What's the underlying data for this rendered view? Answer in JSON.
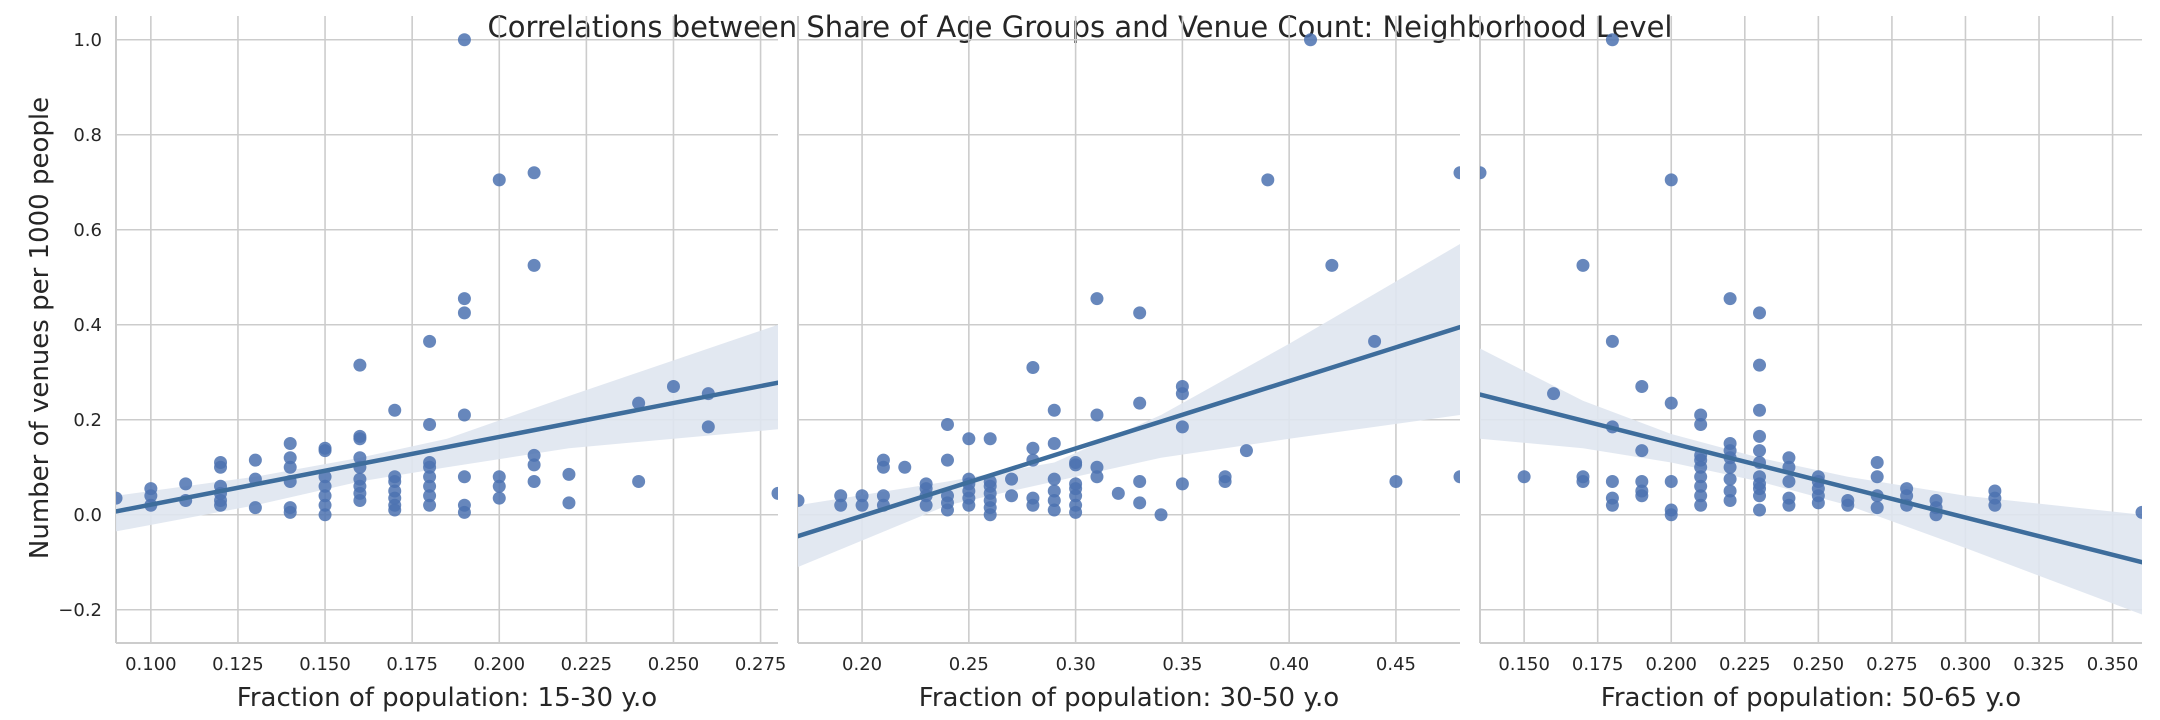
{
  "chart_data": {
    "type": "scatter",
    "title": "Correlations between Share of Age Groups and Venue Count: Neighborhood Level",
    "ylabel": "Number of venues per 1000 people",
    "ylim": [
      -0.27,
      1.05
    ],
    "yticks": [
      -0.2,
      0.0,
      0.2,
      0.4,
      0.6,
      0.8,
      1.0
    ],
    "ytick_labels": [
      "−0.2",
      "0.0",
      "0.2",
      "0.4",
      "0.6",
      "0.8",
      "1.0"
    ],
    "grid": true,
    "colors": {
      "points": "#4c72b0",
      "line": "#3e6d9c",
      "band": "#dfe6ef",
      "grid": "#cccccc",
      "spine": "#cccccc"
    },
    "panels": [
      {
        "xlabel": "Fraction of population: 15-30 y.o",
        "xlim": [
          0.09,
          0.28
        ],
        "xticks": [
          0.1,
          0.125,
          0.15,
          0.175,
          0.2,
          0.225,
          0.25,
          0.275
        ],
        "xtick_labels": [
          "0.100",
          "0.125",
          "0.150",
          "0.175",
          "0.200",
          "0.225",
          "0.250",
          "0.275"
        ],
        "fit_line": [
          [
            0.09,
            0.007
          ],
          [
            0.28,
            0.278
          ]
        ],
        "band_upper": [
          [
            0.09,
            0.04
          ],
          [
            0.13,
            0.08
          ],
          [
            0.16,
            0.12
          ],
          [
            0.185,
            0.16
          ],
          [
            0.22,
            0.25
          ],
          [
            0.28,
            0.4
          ]
        ],
        "band_lower": [
          [
            0.09,
            -0.035
          ],
          [
            0.13,
            0.02
          ],
          [
            0.16,
            0.07
          ],
          [
            0.185,
            0.1
          ],
          [
            0.22,
            0.14
          ],
          [
            0.28,
            0.18
          ]
        ],
        "points": [
          [
            0.09,
            0.035
          ],
          [
            0.1,
            0.02
          ],
          [
            0.1,
            0.04
          ],
          [
            0.1,
            0.055
          ],
          [
            0.11,
            0.03
          ],
          [
            0.11,
            0.065
          ],
          [
            0.12,
            0.02
          ],
          [
            0.12,
            0.03
          ],
          [
            0.12,
            0.045
          ],
          [
            0.12,
            0.06
          ],
          [
            0.12,
            0.1
          ],
          [
            0.12,
            0.11
          ],
          [
            0.13,
            0.015
          ],
          [
            0.13,
            0.075
          ],
          [
            0.13,
            0.115
          ],
          [
            0.14,
            0.005
          ],
          [
            0.14,
            0.015
          ],
          [
            0.14,
            0.07
          ],
          [
            0.14,
            0.1
          ],
          [
            0.14,
            0.12
          ],
          [
            0.14,
            0.15
          ],
          [
            0.15,
            0.0
          ],
          [
            0.15,
            0.02
          ],
          [
            0.15,
            0.04
          ],
          [
            0.15,
            0.06
          ],
          [
            0.15,
            0.08
          ],
          [
            0.15,
            0.135
          ],
          [
            0.15,
            0.14
          ],
          [
            0.16,
            0.03
          ],
          [
            0.16,
            0.045
          ],
          [
            0.16,
            0.06
          ],
          [
            0.16,
            0.075
          ],
          [
            0.16,
            0.1
          ],
          [
            0.16,
            0.12
          ],
          [
            0.16,
            0.16
          ],
          [
            0.16,
            0.165
          ],
          [
            0.16,
            0.315
          ],
          [
            0.17,
            0.01
          ],
          [
            0.17,
            0.02
          ],
          [
            0.17,
            0.035
          ],
          [
            0.17,
            0.05
          ],
          [
            0.17,
            0.07
          ],
          [
            0.17,
            0.08
          ],
          [
            0.17,
            0.22
          ],
          [
            0.18,
            0.02
          ],
          [
            0.18,
            0.04
          ],
          [
            0.18,
            0.06
          ],
          [
            0.18,
            0.08
          ],
          [
            0.18,
            0.1
          ],
          [
            0.18,
            0.11
          ],
          [
            0.18,
            0.19
          ],
          [
            0.18,
            0.365
          ],
          [
            0.19,
            0.005
          ],
          [
            0.19,
            0.02
          ],
          [
            0.19,
            0.08
          ],
          [
            0.19,
            0.21
          ],
          [
            0.19,
            0.425
          ],
          [
            0.19,
            0.455
          ],
          [
            0.19,
            1.0
          ],
          [
            0.2,
            0.035
          ],
          [
            0.2,
            0.06
          ],
          [
            0.2,
            0.08
          ],
          [
            0.2,
            0.705
          ],
          [
            0.21,
            0.07
          ],
          [
            0.21,
            0.105
          ],
          [
            0.21,
            0.125
          ],
          [
            0.21,
            0.525
          ],
          [
            0.21,
            0.72
          ],
          [
            0.22,
            0.025
          ],
          [
            0.22,
            0.085
          ],
          [
            0.24,
            0.07
          ],
          [
            0.24,
            0.235
          ],
          [
            0.25,
            0.27
          ],
          [
            0.26,
            0.185
          ],
          [
            0.26,
            0.255
          ],
          [
            0.28,
            0.045
          ]
        ]
      },
      {
        "xlabel": "Fraction of population: 30-50 y.o",
        "xlim": [
          0.17,
          0.48
        ],
        "xticks": [
          0.2,
          0.25,
          0.3,
          0.35,
          0.4,
          0.45
        ],
        "xtick_labels": [
          "0.20",
          "0.25",
          "0.30",
          "0.35",
          "0.40",
          "0.45"
        ],
        "fit_line": [
          [
            0.17,
            -0.045
          ],
          [
            0.48,
            0.395
          ]
        ],
        "band_upper": [
          [
            0.17,
            0.02
          ],
          [
            0.24,
            0.07
          ],
          [
            0.29,
            0.11
          ],
          [
            0.34,
            0.21
          ],
          [
            0.4,
            0.36
          ],
          [
            0.48,
            0.57
          ]
        ],
        "band_lower": [
          [
            0.17,
            -0.11
          ],
          [
            0.24,
            0.02
          ],
          [
            0.29,
            0.07
          ],
          [
            0.34,
            0.12
          ],
          [
            0.4,
            0.16
          ],
          [
            0.48,
            0.21
          ]
        ],
        "points": [
          [
            0.17,
            0.03
          ],
          [
            0.19,
            0.02
          ],
          [
            0.19,
            0.04
          ],
          [
            0.2,
            0.02
          ],
          [
            0.2,
            0.04
          ],
          [
            0.21,
            0.02
          ],
          [
            0.21,
            0.04
          ],
          [
            0.21,
            0.1
          ],
          [
            0.21,
            0.115
          ],
          [
            0.22,
            0.1
          ],
          [
            0.23,
            0.02
          ],
          [
            0.23,
            0.04
          ],
          [
            0.23,
            0.055
          ],
          [
            0.23,
            0.065
          ],
          [
            0.24,
            0.01
          ],
          [
            0.24,
            0.025
          ],
          [
            0.24,
            0.04
          ],
          [
            0.24,
            0.115
          ],
          [
            0.24,
            0.19
          ],
          [
            0.25,
            0.02
          ],
          [
            0.25,
            0.035
          ],
          [
            0.25,
            0.05
          ],
          [
            0.25,
            0.065
          ],
          [
            0.25,
            0.075
          ],
          [
            0.25,
            0.16
          ],
          [
            0.26,
            0.0
          ],
          [
            0.26,
            0.015
          ],
          [
            0.26,
            0.03
          ],
          [
            0.26,
            0.045
          ],
          [
            0.26,
            0.06
          ],
          [
            0.26,
            0.07
          ],
          [
            0.26,
            0.16
          ],
          [
            0.27,
            0.04
          ],
          [
            0.27,
            0.075
          ],
          [
            0.28,
            0.02
          ],
          [
            0.28,
            0.035
          ],
          [
            0.28,
            0.115
          ],
          [
            0.28,
            0.14
          ],
          [
            0.28,
            0.31
          ],
          [
            0.29,
            0.01
          ],
          [
            0.29,
            0.03
          ],
          [
            0.29,
            0.05
          ],
          [
            0.29,
            0.075
          ],
          [
            0.29,
            0.15
          ],
          [
            0.29,
            0.22
          ],
          [
            0.3,
            0.005
          ],
          [
            0.3,
            0.02
          ],
          [
            0.3,
            0.04
          ],
          [
            0.3,
            0.055
          ],
          [
            0.3,
            0.065
          ],
          [
            0.3,
            0.105
          ],
          [
            0.3,
            0.11
          ],
          [
            0.31,
            0.08
          ],
          [
            0.31,
            0.1
          ],
          [
            0.31,
            0.21
          ],
          [
            0.31,
            0.455
          ],
          [
            0.32,
            0.045
          ],
          [
            0.33,
            0.025
          ],
          [
            0.33,
            0.07
          ],
          [
            0.33,
            0.235
          ],
          [
            0.33,
            0.425
          ],
          [
            0.34,
            0.0
          ],
          [
            0.35,
            0.065
          ],
          [
            0.35,
            0.185
          ],
          [
            0.35,
            0.255
          ],
          [
            0.35,
            0.27
          ],
          [
            0.37,
            0.07
          ],
          [
            0.37,
            0.08
          ],
          [
            0.38,
            0.135
          ],
          [
            0.39,
            0.705
          ],
          [
            0.41,
            1.0
          ],
          [
            0.42,
            0.525
          ],
          [
            0.44,
            0.365
          ],
          [
            0.45,
            0.07
          ],
          [
            0.48,
            0.08
          ],
          [
            0.48,
            0.72
          ]
        ]
      },
      {
        "xlabel": "Fraction of population: 50-65 y.o",
        "xlim": [
          0.135,
          0.36
        ],
        "xticks": [
          0.15,
          0.175,
          0.2,
          0.225,
          0.25,
          0.275,
          0.3,
          0.325,
          0.35
        ],
        "xtick_labels": [
          "0.150",
          "0.175",
          "0.200",
          "0.225",
          "0.250",
          "0.275",
          "0.300",
          "0.325",
          "0.350"
        ],
        "fit_line": [
          [
            0.135,
            0.253
          ],
          [
            0.36,
            -0.1
          ]
        ],
        "band_upper": [
          [
            0.135,
            0.35
          ],
          [
            0.17,
            0.24
          ],
          [
            0.2,
            0.17
          ],
          [
            0.23,
            0.12
          ],
          [
            0.26,
            0.08
          ],
          [
            0.3,
            0.04
          ],
          [
            0.36,
            0.0
          ]
        ],
        "band_lower": [
          [
            0.135,
            0.16
          ],
          [
            0.17,
            0.14
          ],
          [
            0.2,
            0.11
          ],
          [
            0.23,
            0.07
          ],
          [
            0.26,
            0.02
          ],
          [
            0.3,
            -0.07
          ],
          [
            0.36,
            -0.21
          ]
        ],
        "points": [
          [
            0.135,
            0.72
          ],
          [
            0.15,
            0.08
          ],
          [
            0.16,
            0.255
          ],
          [
            0.17,
            0.07
          ],
          [
            0.17,
            0.08
          ],
          [
            0.17,
            0.525
          ],
          [
            0.18,
            0.02
          ],
          [
            0.18,
            0.035
          ],
          [
            0.18,
            0.07
          ],
          [
            0.18,
            0.185
          ],
          [
            0.18,
            0.365
          ],
          [
            0.18,
            1.0
          ],
          [
            0.19,
            0.04
          ],
          [
            0.19,
            0.05
          ],
          [
            0.19,
            0.07
          ],
          [
            0.19,
            0.135
          ],
          [
            0.19,
            0.27
          ],
          [
            0.2,
            0.0
          ],
          [
            0.2,
            0.01
          ],
          [
            0.2,
            0.07
          ],
          [
            0.2,
            0.235
          ],
          [
            0.2,
            0.705
          ],
          [
            0.21,
            0.02
          ],
          [
            0.21,
            0.04
          ],
          [
            0.21,
            0.06
          ],
          [
            0.21,
            0.08
          ],
          [
            0.21,
            0.1
          ],
          [
            0.21,
            0.115
          ],
          [
            0.21,
            0.125
          ],
          [
            0.21,
            0.19
          ],
          [
            0.21,
            0.21
          ],
          [
            0.22,
            0.03
          ],
          [
            0.22,
            0.05
          ],
          [
            0.22,
            0.075
          ],
          [
            0.22,
            0.1
          ],
          [
            0.22,
            0.12
          ],
          [
            0.22,
            0.135
          ],
          [
            0.22,
            0.15
          ],
          [
            0.22,
            0.455
          ],
          [
            0.23,
            0.01
          ],
          [
            0.23,
            0.04
          ],
          [
            0.23,
            0.055
          ],
          [
            0.23,
            0.065
          ],
          [
            0.23,
            0.08
          ],
          [
            0.23,
            0.11
          ],
          [
            0.23,
            0.135
          ],
          [
            0.23,
            0.165
          ],
          [
            0.23,
            0.22
          ],
          [
            0.23,
            0.315
          ],
          [
            0.23,
            0.425
          ],
          [
            0.24,
            0.02
          ],
          [
            0.24,
            0.035
          ],
          [
            0.24,
            0.07
          ],
          [
            0.24,
            0.1
          ],
          [
            0.24,
            0.12
          ],
          [
            0.25,
            0.025
          ],
          [
            0.25,
            0.04
          ],
          [
            0.25,
            0.055
          ],
          [
            0.25,
            0.07
          ],
          [
            0.25,
            0.08
          ],
          [
            0.26,
            0.02
          ],
          [
            0.26,
            0.03
          ],
          [
            0.27,
            0.015
          ],
          [
            0.27,
            0.04
          ],
          [
            0.27,
            0.08
          ],
          [
            0.27,
            0.11
          ],
          [
            0.28,
            0.02
          ],
          [
            0.28,
            0.04
          ],
          [
            0.28,
            0.055
          ],
          [
            0.29,
            0.0
          ],
          [
            0.29,
            0.015
          ],
          [
            0.29,
            0.03
          ],
          [
            0.31,
            0.02
          ],
          [
            0.31,
            0.035
          ],
          [
            0.31,
            0.05
          ],
          [
            0.36,
            0.005
          ]
        ]
      }
    ]
  }
}
